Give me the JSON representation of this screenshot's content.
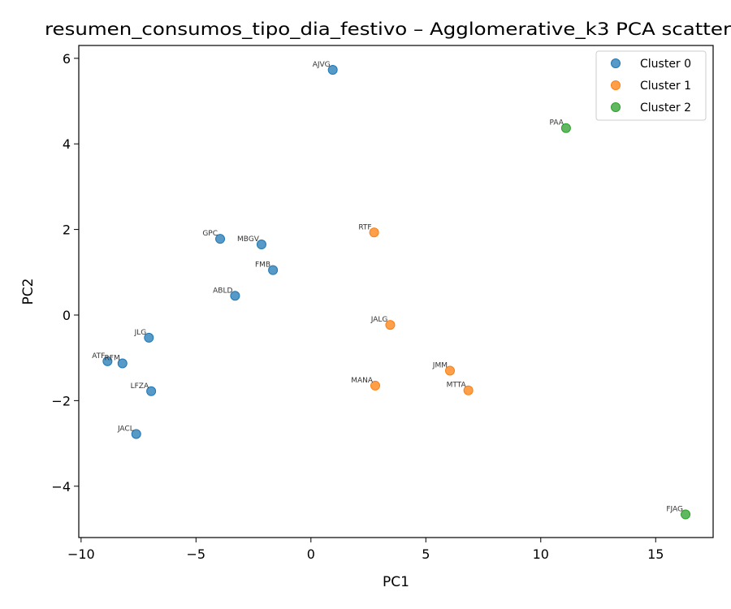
{
  "chart_data": {
    "type": "scatter",
    "title": "resumen_consumos_tipo_dia_festivo – Agglomerative_k3 PCA scatter",
    "xlabel": "PC1",
    "ylabel": "PC2",
    "xlim": [
      -10.1,
      17.5
    ],
    "ylim": [
      -5.2,
      6.3
    ],
    "xticks": [
      -10,
      -5,
      0,
      5,
      10,
      15
    ],
    "yticks": [
      -4,
      -2,
      0,
      2,
      4,
      6
    ],
    "xtick_labels": [
      "−10",
      "−5",
      "0",
      "5",
      "10",
      "15"
    ],
    "ytick_labels": [
      "−4",
      "−2",
      "0",
      "2",
      "4",
      "6"
    ],
    "grid": false,
    "legend_position": "top-right",
    "series": [
      {
        "name": "Cluster 0",
        "color": "#1f77b4",
        "points": [
          {
            "label": "AJVG",
            "x": 0.95,
            "y": 5.73
          },
          {
            "label": "GPC",
            "x": -3.95,
            "y": 1.78
          },
          {
            "label": "MBGV",
            "x": -2.15,
            "y": 1.65
          },
          {
            "label": "FMB",
            "x": -1.65,
            "y": 1.05
          },
          {
            "label": "ABLD",
            "x": -3.3,
            "y": 0.45
          },
          {
            "label": "JLG",
            "x": -7.05,
            "y": -0.53
          },
          {
            "label": "ATF",
            "x": -8.85,
            "y": -1.08
          },
          {
            "label": "RFM",
            "x": -8.2,
            "y": -1.13
          },
          {
            "label": "LFZA",
            "x": -6.95,
            "y": -1.78
          },
          {
            "label": "JACL",
            "x": -7.6,
            "y": -2.78
          }
        ]
      },
      {
        "name": "Cluster 1",
        "color": "#ff7f0e",
        "points": [
          {
            "label": "RTF",
            "x": 2.75,
            "y": 1.93
          },
          {
            "label": "JALG",
            "x": 3.45,
            "y": -0.23
          },
          {
            "label": "JMM",
            "x": 6.05,
            "y": -1.3
          },
          {
            "label": "MANA",
            "x": 2.8,
            "y": -1.65
          },
          {
            "label": "MTTA",
            "x": 6.85,
            "y": -1.76
          }
        ]
      },
      {
        "name": "Cluster 2",
        "color": "#2ca02c",
        "points": [
          {
            "label": "PAA",
            "x": 11.1,
            "y": 4.37
          },
          {
            "label": "FJAG",
            "x": 16.3,
            "y": -4.66
          }
        ]
      }
    ]
  }
}
